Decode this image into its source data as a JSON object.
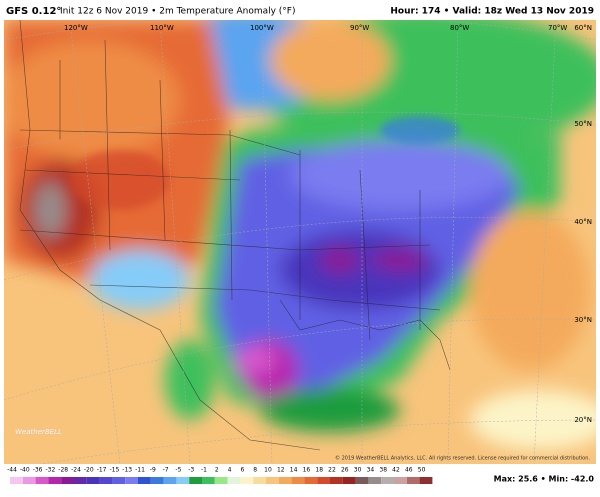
{
  "header": {
    "model": "GFS 0.12°",
    "init": "Init 12z 6 Nov 2019 • 2m Temperature Anomaly (°F)",
    "valid": "Hour: 174 • Valid: 18z Wed 13 Nov 2019"
  },
  "map": {
    "lon_labels": [
      "120°W",
      "110°W",
      "100°W",
      "90°W",
      "80°W",
      "70°W"
    ],
    "lat_labels": [
      "60°N",
      "50°N",
      "40°N",
      "30°N",
      "20°N"
    ],
    "copyright": "© 2019 WeatherBELL Analytics, LLC. All rights reserved. License required for commercial distribution.",
    "logo": "WeatherBELL"
  },
  "colorbar": {
    "entries": [
      {
        "label": "-44",
        "color": "#f6c6ee"
      },
      {
        "label": "-40",
        "color": "#ec98e4"
      },
      {
        "label": "-36",
        "color": "#d858cc"
      },
      {
        "label": "-32",
        "color": "#b824ae"
      },
      {
        "label": "-28",
        "color": "#8a1a96"
      },
      {
        "label": "-24",
        "color": "#6428a8"
      },
      {
        "label": "-20",
        "color": "#4a34bc"
      },
      {
        "label": "-17",
        "color": "#5246d2"
      },
      {
        "label": "-15",
        "color": "#6060e4"
      },
      {
        "label": "-13",
        "color": "#7a7cf0"
      },
      {
        "label": "-11",
        "color": "#2e52d0"
      },
      {
        "label": "-9",
        "color": "#3a7ae0"
      },
      {
        "label": "-7",
        "color": "#5aa4f0"
      },
      {
        "label": "-5",
        "color": "#86ccf8"
      },
      {
        "label": "-3",
        "color": "#1e9c3e"
      },
      {
        "label": "-1",
        "color": "#3cc05c"
      },
      {
        "label": "2",
        "color": "#98e888"
      },
      {
        "label": "4",
        "color": "#e4f4dc"
      },
      {
        "label": "6",
        "color": "#fcf4c8"
      },
      {
        "label": "8",
        "color": "#f8dc9c"
      },
      {
        "label": "10",
        "color": "#f8c47c"
      },
      {
        "label": "12",
        "color": "#f4aa5c"
      },
      {
        "label": "14",
        "color": "#ee8c44"
      },
      {
        "label": "16",
        "color": "#e66a34"
      },
      {
        "label": "18",
        "color": "#d44a2a"
      },
      {
        "label": "22",
        "color": "#b43224"
      },
      {
        "label": "26",
        "color": "#962420"
      },
      {
        "label": "30",
        "color": "#7a5a5a"
      },
      {
        "label": "34",
        "color": "#968c8c"
      },
      {
        "label": "38",
        "color": "#b4aeae"
      },
      {
        "label": "42",
        "color": "#caa2a2"
      },
      {
        "label": "46",
        "color": "#b26a6a"
      },
      {
        "label": "50",
        "color": "#8e3030"
      }
    ]
  },
  "footer": {
    "maxmin": "Max: 25.6 • Min: -42.0"
  }
}
